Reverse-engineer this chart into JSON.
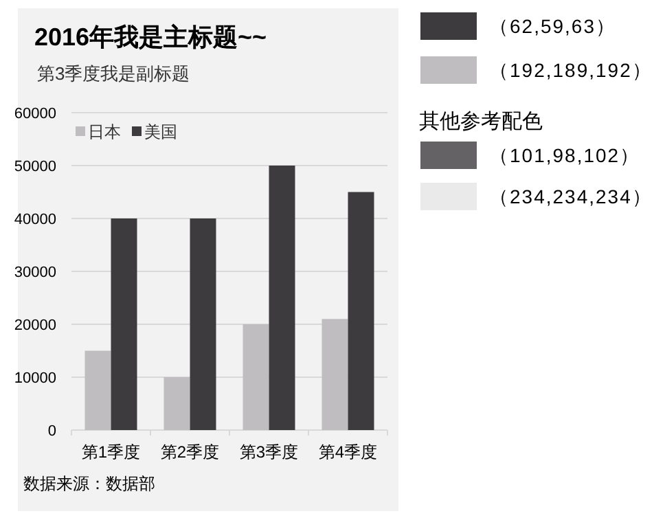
{
  "chart_data": [
    {
      "type": "bar",
      "title": "2016年我是主标题~~",
      "subtitle": "第3季度我是副标题",
      "categories": [
        "第1季度",
        "第2季度",
        "第3季度",
        "第4季度"
      ],
      "series": [
        {
          "name": "日本",
          "color": "#c0bdc0",
          "values": [
            15000,
            10000,
            20000,
            21000
          ]
        },
        {
          "name": "美国",
          "color": "#3e3b3f",
          "values": [
            40000,
            40000,
            50000,
            45000
          ]
        }
      ],
      "ylim": [
        0,
        60000
      ],
      "yticks": [
        0,
        10000,
        20000,
        30000,
        40000,
        50000,
        60000
      ],
      "grid": "y",
      "legend": "top left",
      "annotations": [
        "数据来源：数据部"
      ]
    },
    {
      "type": "other",
      "title": "其他参考配色",
      "categories": [
        "（62,59,63）",
        "（192,189,192）",
        "（101,98,102）",
        "（234,234,234）"
      ],
      "colors": [
        "#3e3b3f",
        "#c0bdc0",
        "#656266",
        "#eaeaea"
      ]
    }
  ]
}
